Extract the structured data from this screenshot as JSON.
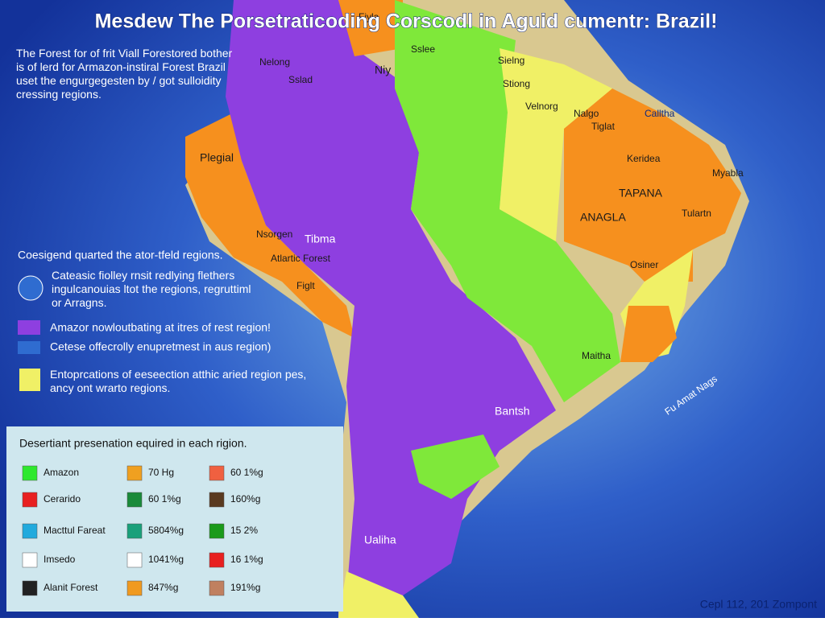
{
  "title": "Mesdew The Porsetraticoding Corscodl in Aguid cumentr: Brazil!",
  "intro": "The Forest for of frit Viall Forestored bother is of lerd for Armazon-instiral Forest Brazil uset the engurgegesten by / got sulloidity cressing regions.",
  "legend": {
    "heading": "Coesigend quarted the ator-tfeld regions.",
    "items": [
      "Cateasic fiolley rnsit redlying flethers ingulcanouias ltot the regions, regruttiml or Arragns.",
      "Amazor nowloutbating at itres of rest region!",
      "Cetese offecrolly enupretmest in aus region)",
      "Entoprcations of eeseection atthic aried region pes, ancy ont wrarto regions."
    ]
  },
  "table": {
    "title": "Desertiant presenation equired in each rigion.",
    "rows": [
      [
        "Amazon",
        "70 Hg",
        "60 1%g"
      ],
      [
        "Cerarido",
        "60 1%g",
        "160%g"
      ],
      [
        "Macttul Fareat",
        "5804%g",
        "15 2%"
      ],
      [
        "Imsedo",
        "1041%g",
        "16 1%g"
      ],
      [
        "Alanit Forest",
        "847%g",
        "191%g"
      ]
    ]
  },
  "map_labels": [
    "Fiyla",
    "Nelong",
    "Sslad",
    "Niy",
    "Sslee",
    "Sielng",
    "Stiong",
    "Velnorg",
    "Nalgo",
    "Tiglat",
    "Calltha",
    "Keridea",
    "Myabla",
    "TAPANA",
    "ANAGLA",
    "Tulartn",
    "Plegial",
    "Nsorgen",
    "Tibma",
    "Atlartic Forest",
    "Figlt",
    "Osiner",
    "Maitha",
    "Bantsh",
    "Ualiha",
    "Fu Amat Nags"
  ],
  "footer": "Cepl 112, 201 Zompont"
}
